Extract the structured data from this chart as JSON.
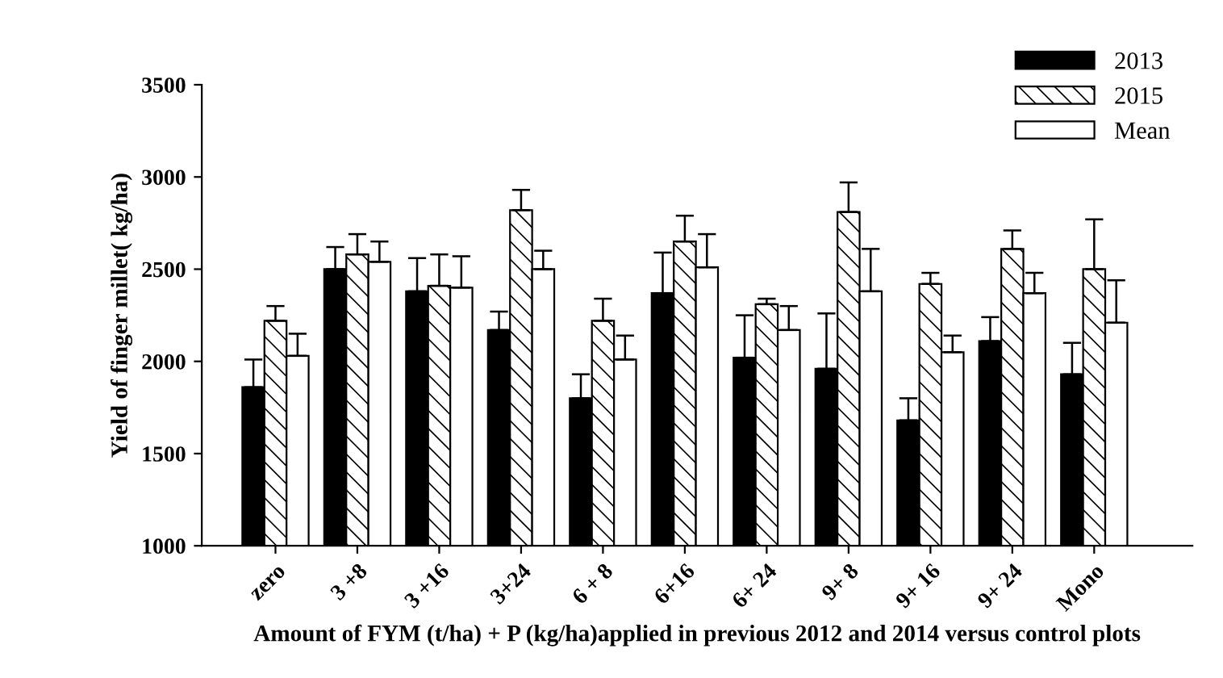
{
  "chart_data": {
    "type": "bar",
    "xlabel": "Amount of FYM (t/ha) + P (kg/ha)applied in previous 2012 and 2014 versus control plots",
    "ylabel": "Yield of finger millet( kg/ha)",
    "categories": [
      "zero",
      "3 +8",
      "3 +16",
      "3+24",
      "6 + 8",
      "6+16",
      "6+ 24",
      "9+ 8",
      "9+ 16",
      "9+ 24",
      "Mono"
    ],
    "series": [
      {
        "name": "2013",
        "color": "#000000",
        "values": [
          1860,
          2500,
          2380,
          2170,
          1800,
          2370,
          2020,
          1960,
          1680,
          2110,
          1930
        ],
        "errors": [
          [
            1860,
            2010
          ],
          [
            2500,
            2620
          ],
          [
            2380,
            2560
          ],
          [
            2170,
            2270
          ],
          [
            1800,
            1930
          ],
          [
            2370,
            2590
          ],
          [
            2020,
            2250
          ],
          [
            1960,
            2260
          ],
          [
            1680,
            1800
          ],
          [
            2110,
            2240
          ],
          [
            1930,
            2100
          ]
        ]
      },
      {
        "name": "2015",
        "color": "#ffffff",
        "values": [
          2220,
          2580,
          2410,
          2820,
          2220,
          2650,
          2310,
          2810,
          2420,
          2610,
          2500
        ],
        "errors": [
          [
            2220,
            2300
          ],
          [
            2580,
            2690
          ],
          [
            2410,
            2580
          ],
          [
            2820,
            2930
          ],
          [
            2220,
            2340
          ],
          [
            2650,
            2790
          ],
          [
            2310,
            2340
          ],
          [
            2810,
            2970
          ],
          [
            2420,
            2480
          ],
          [
            2610,
            2710
          ],
          [
            2500,
            2770
          ]
        ]
      },
      {
        "name": "Mean",
        "color": "#ffffff",
        "values": [
          2030,
          2540,
          2400,
          2500,
          2010,
          2510,
          2170,
          2380,
          2050,
          2370,
          2210
        ],
        "errors": [
          [
            2030,
            2150
          ],
          [
            2540,
            2650
          ],
          [
            2400,
            2570
          ],
          [
            2500,
            2600
          ],
          [
            2010,
            2140
          ],
          [
            2510,
            2690
          ],
          [
            2170,
            2300
          ],
          [
            2380,
            2610
          ],
          [
            2050,
            2140
          ],
          [
            2370,
            2480
          ],
          [
            2210,
            2440
          ]
        ]
      }
    ],
    "ylim": [
      1000,
      3500
    ],
    "yticks": [
      1000,
      1500,
      2000,
      2500,
      3000,
      3500
    ],
    "grid": false,
    "legend": "top right"
  }
}
